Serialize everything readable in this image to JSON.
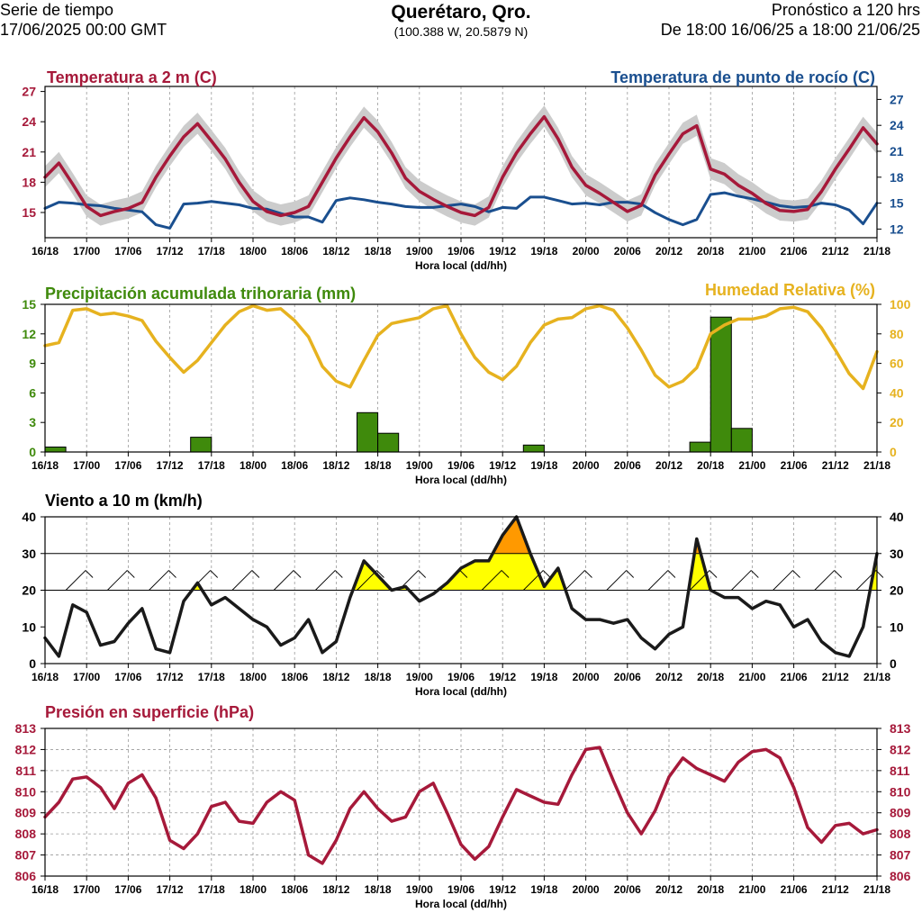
{
  "header": {
    "left_line1": "Serie de tiempo",
    "left_line2": "17/06/2025 00:00 GMT",
    "title": "Querétaro, Qro.",
    "coords": "(100.388 W, 20.5879 N)",
    "right_line1": "Pronóstico a 120 hrs",
    "right_line2": "De 18:00 16/06/25 a 18:00 21/06/25"
  },
  "colors": {
    "temperature": "#a6193a",
    "dewpoint": "#1a4f8f",
    "precipitation": "#3f8a0c",
    "humidity": "#e6b21f",
    "wind": "#1a1a1a",
    "wind_fill_30": "#ffff00",
    "wind_fill_40": "#ff9900",
    "pressure": "#a6193a",
    "spread": "#cccccc"
  },
  "x_axis": {
    "label": "Hora local (dd/hh)",
    "ticks": [
      "16/18",
      "17/00",
      "17/06",
      "17/12",
      "17/18",
      "18/00",
      "18/06",
      "18/12",
      "18/18",
      "19/00",
      "19/06",
      "19/12",
      "19/18",
      "20/00",
      "20/06",
      "20/12",
      "20/18",
      "21/00",
      "21/06",
      "21/12",
      "21/18"
    ]
  },
  "chart_data": [
    {
      "type": "line",
      "title_left": "Temperatura a 2 m (C)",
      "title_right": "Temperatura de punto de rocío (C)",
      "xlabel": "Hora local (dd/hh)",
      "x_hours": [
        0,
        2,
        4,
        6,
        8,
        10,
        12,
        14,
        16,
        18,
        20,
        22,
        24,
        26,
        28,
        30,
        32,
        34,
        36,
        38,
        40,
        42,
        44,
        46,
        48,
        50,
        52,
        54,
        56,
        58,
        60,
        62,
        64,
        66,
        68,
        70,
        72,
        74,
        76,
        78,
        80,
        82,
        84,
        86,
        88,
        90,
        92,
        94,
        96,
        98,
        100,
        102,
        104,
        106,
        108,
        110,
        112,
        114,
        116,
        118,
        120
      ],
      "ylim_left": [
        12.5,
        27.5
      ],
      "yticks_left": [
        "15",
        "18",
        "21",
        "24",
        "27"
      ],
      "ylim_right": [
        11.0,
        28.5
      ],
      "yticks_right": [
        "12",
        "15",
        "18",
        "21",
        "24",
        "27"
      ],
      "series": [
        {
          "name": "Temperatura a 2 m (C)",
          "axis": "left",
          "values": [
            18.5,
            19.9,
            17.8,
            15.6,
            14.7,
            15.1,
            15.4,
            16.0,
            18.5,
            20.6,
            22.5,
            23.8,
            22.1,
            20.3,
            18.0,
            16.1,
            15.1,
            14.7,
            15.0,
            15.6,
            18.0,
            20.4,
            22.5,
            24.4,
            23.0,
            20.9,
            18.4,
            17.1,
            16.3,
            15.6,
            15.0,
            14.7,
            15.5,
            18.5,
            20.9,
            22.8,
            24.5,
            22.3,
            19.5,
            17.7,
            16.9,
            16.0,
            15.1,
            15.7,
            18.7,
            20.8,
            22.8,
            23.6,
            19.3,
            18.8,
            17.7,
            16.9,
            15.9,
            15.2,
            15.1,
            15.3,
            17.1,
            19.3,
            21.3,
            23.4,
            21.8
          ]
        },
        {
          "name": "Temperatura de punto de rocío (C)",
          "axis": "right",
          "values": [
            14.4,
            15.1,
            15.0,
            14.8,
            14.7,
            14.4,
            14.2,
            14.0,
            12.5,
            12.1,
            14.9,
            15.0,
            15.2,
            15.0,
            14.8,
            14.4,
            14.3,
            13.8,
            13.4,
            13.4,
            12.8,
            15.3,
            15.6,
            15.4,
            15.1,
            14.9,
            14.6,
            14.5,
            14.5,
            14.7,
            14.9,
            14.6,
            14.0,
            14.5,
            14.4,
            15.7,
            15.7,
            15.3,
            14.9,
            15.0,
            14.8,
            15.1,
            15.1,
            14.9,
            13.9,
            13.1,
            12.5,
            13.1,
            16.0,
            16.2,
            15.8,
            15.5,
            15.1,
            14.7,
            14.5,
            14.6,
            15.0,
            14.8,
            14.2,
            12.6,
            15.0
          ]
        }
      ]
    },
    {
      "type": "bar",
      "title_left": "Precipitación acumulada trihoraria (mm)",
      "title_right": "Humedad Relativa (%)",
      "xlabel": "Hora local (dd/hh)",
      "ylim_left": [
        0,
        15
      ],
      "yticks_left": [
        "0",
        "3",
        "6",
        "9",
        "12",
        "15"
      ],
      "ylim_right": [
        0,
        100
      ],
      "yticks_right": [
        "0",
        "20",
        "40",
        "60",
        "80",
        "100"
      ],
      "precip_bars": {
        "name": "Precipitación acumulada trihoraria (mm)",
        "x_hours": [
          1.5,
          22.5,
          46.5,
          49.5,
          70.5,
          94.5,
          97.5,
          100.5
        ],
        "values": [
          0.5,
          1.5,
          4.0,
          1.9,
          0.7,
          1.0,
          13.7,
          2.4
        ]
      },
      "humidity": {
        "name": "Humedad Relativa (%)",
        "x_hours": [
          0,
          2,
          4,
          6,
          8,
          10,
          12,
          14,
          16,
          18,
          20,
          22,
          24,
          26,
          28,
          30,
          32,
          34,
          36,
          38,
          40,
          42,
          44,
          46,
          48,
          50,
          52,
          54,
          56,
          58,
          60,
          62,
          64,
          66,
          68,
          70,
          72,
          74,
          76,
          78,
          80,
          82,
          84,
          86,
          88,
          90,
          92,
          94,
          96,
          98,
          100,
          102,
          104,
          106,
          108,
          110,
          112,
          114,
          116,
          118,
          120
        ],
        "values": [
          72,
          74,
          96,
          97,
          93,
          94,
          92,
          89,
          75,
          64,
          54,
          62,
          74,
          86,
          95,
          99,
          96,
          97,
          89,
          78,
          58,
          48,
          44,
          62,
          79,
          87,
          89,
          91,
          97,
          99,
          80,
          64,
          54,
          49,
          58,
          74,
          86,
          90,
          91,
          97,
          99,
          96,
          84,
          69,
          52,
          44,
          48,
          57,
          80,
          86,
          90,
          90,
          92,
          97,
          98,
          95,
          84,
          69,
          53,
          43,
          68
        ]
      }
    },
    {
      "type": "line",
      "title_left": "Viento a 10 m (km/h)",
      "xlabel": "Hora local (dd/hh)",
      "ylim": [
        0,
        40
      ],
      "yticks": [
        "0",
        "10",
        "20",
        "30",
        "40"
      ],
      "series": [
        {
          "name": "Viento a 10 m (km/h)",
          "x_hours": [
            0,
            2,
            4,
            6,
            8,
            10,
            12,
            14,
            16,
            18,
            20,
            22,
            24,
            26,
            28,
            30,
            32,
            34,
            36,
            38,
            40,
            42,
            44,
            46,
            48,
            50,
            52,
            54,
            56,
            58,
            60,
            62,
            64,
            66,
            68,
            70,
            72,
            74,
            76,
            78,
            80,
            82,
            84,
            86,
            88,
            90,
            92,
            94,
            96,
            98,
            100,
            102,
            104,
            106,
            108,
            110,
            112,
            114,
            116,
            118,
            120
          ],
          "values": [
            7,
            2,
            16,
            14,
            5,
            6,
            11,
            15,
            4,
            3,
            17,
            22,
            16,
            18,
            15,
            12,
            10,
            5,
            7,
            12,
            3,
            6,
            18,
            28,
            24,
            20,
            21,
            17,
            19,
            22,
            26,
            28,
            28,
            35,
            40,
            30,
            21,
            26,
            15,
            12,
            12,
            11,
            12,
            7,
            4,
            8,
            10,
            34,
            20,
            18,
            18,
            15,
            17,
            16,
            10,
            12,
            6,
            3,
            2,
            10,
            30
          ]
        }
      ]
    },
    {
      "type": "line",
      "title_left": "Presión en superficie (hPa)",
      "xlabel": "Hora local (dd/hh)",
      "ylim": [
        806,
        813
      ],
      "yticks": [
        "806",
        "807",
        "808",
        "809",
        "810",
        "811",
        "812",
        "813"
      ],
      "series": [
        {
          "name": "Presión en superficie (hPa)",
          "x_hours": [
            0,
            2,
            4,
            6,
            8,
            10,
            12,
            14,
            16,
            18,
            20,
            22,
            24,
            26,
            28,
            30,
            32,
            34,
            36,
            38,
            40,
            42,
            44,
            46,
            48,
            50,
            52,
            54,
            56,
            58,
            60,
            62,
            64,
            66,
            68,
            70,
            72,
            74,
            76,
            78,
            80,
            82,
            84,
            86,
            88,
            90,
            92,
            94,
            96,
            98,
            100,
            102,
            104,
            106,
            108,
            110,
            112,
            114,
            116,
            118,
            120
          ],
          "values": [
            808.8,
            809.5,
            810.6,
            810.7,
            810.2,
            809.2,
            810.4,
            810.8,
            809.7,
            807.7,
            807.3,
            808.0,
            809.3,
            809.5,
            808.6,
            808.5,
            809.5,
            810.0,
            809.6,
            807.0,
            806.6,
            807.7,
            809.2,
            810.0,
            809.2,
            808.6,
            808.8,
            810.0,
            810.4,
            809.0,
            807.5,
            806.8,
            807.4,
            808.8,
            810.1,
            809.8,
            809.5,
            809.4,
            810.8,
            812.0,
            812.1,
            810.5,
            809.0,
            808.0,
            809.1,
            810.7,
            811.6,
            811.1,
            810.8,
            810.5,
            811.4,
            811.9,
            812.0,
            811.6,
            810.2,
            808.3,
            807.6,
            808.4,
            808.5,
            808.0,
            808.2
          ]
        }
      ]
    }
  ]
}
